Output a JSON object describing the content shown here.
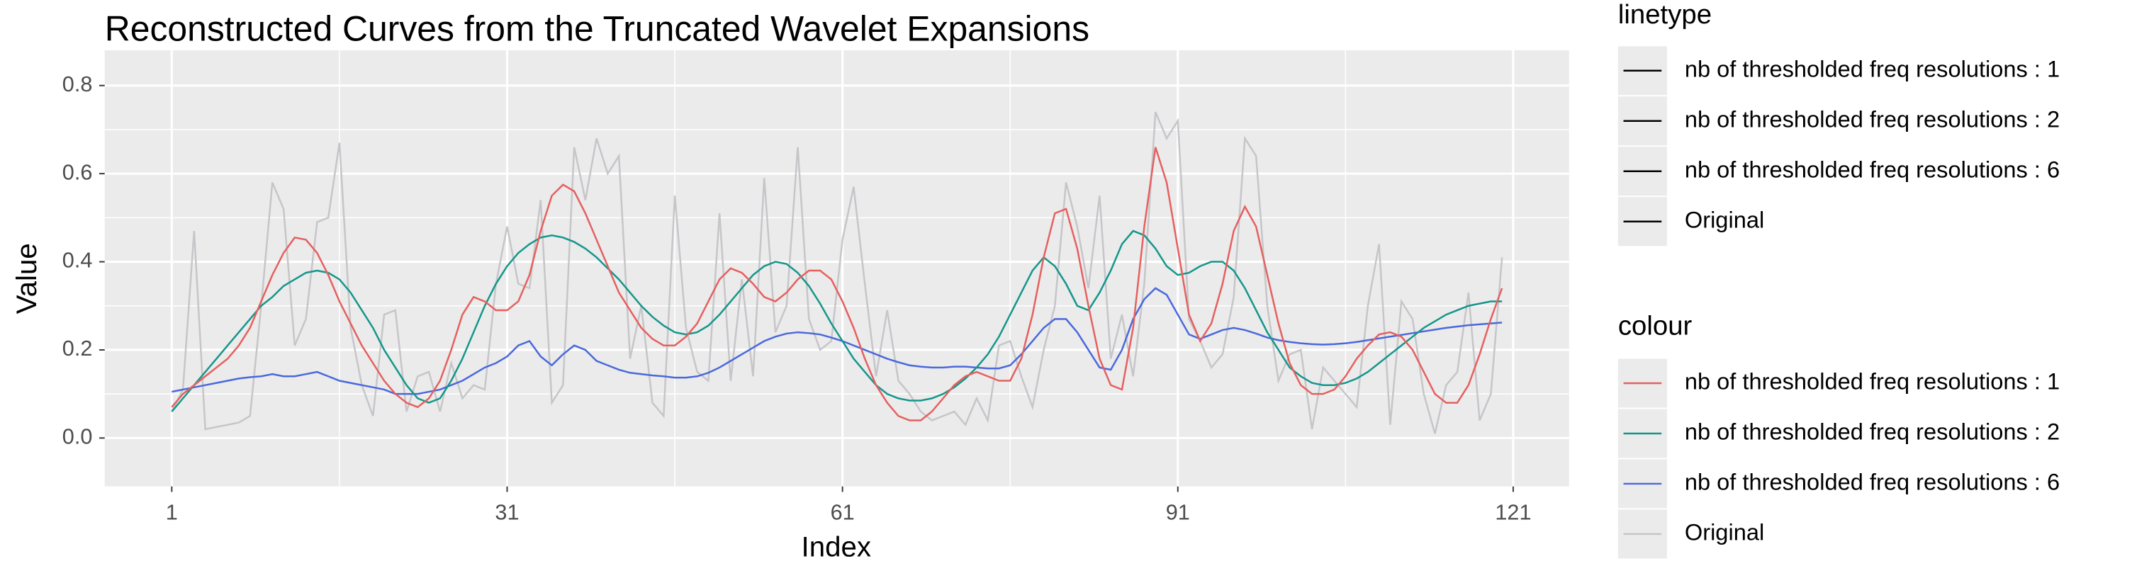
{
  "chart_data": {
    "type": "line",
    "title": "Reconstructed Curves from the Truncated Wavelet Expansions",
    "x_label": "Index",
    "y_label": "Value",
    "xlim": [
      -5,
      126
    ],
    "ylim": [
      -0.11,
      0.88
    ],
    "xticks": [
      1,
      31,
      61,
      91,
      121
    ],
    "yticks": [
      {
        "value": 0,
        "label": "0.0"
      },
      0.2,
      0.4,
      0.6,
      0.8
    ],
    "grid": true,
    "x": [
      1,
      2,
      3,
      4,
      5,
      6,
      7,
      8,
      9,
      10,
      11,
      12,
      13,
      14,
      15,
      16,
      17,
      18,
      19,
      20,
      21,
      22,
      23,
      24,
      25,
      26,
      27,
      28,
      29,
      30,
      31,
      32,
      33,
      34,
      35,
      36,
      37,
      38,
      39,
      40,
      41,
      42,
      43,
      44,
      45,
      46,
      47,
      48,
      49,
      50,
      51,
      52,
      53,
      54,
      55,
      56,
      57,
      58,
      59,
      60,
      61,
      62,
      63,
      64,
      65,
      66,
      67,
      68,
      69,
      70,
      71,
      72,
      73,
      74,
      75,
      76,
      77,
      78,
      79,
      80,
      81,
      82,
      83,
      84,
      85,
      86,
      87,
      88,
      89,
      90,
      91,
      92,
      93,
      94,
      95,
      96,
      97,
      98,
      99,
      100,
      101,
      102,
      103,
      104,
      105,
      106,
      107,
      108,
      109,
      110,
      111,
      112,
      113,
      114,
      115,
      116,
      117,
      118,
      119,
      120
    ],
    "linetype_legend": {
      "title": "linetype",
      "labels": [
        "nb of thresholded freq resolutions : 1",
        "nb of thresholded freq resolutions : 2",
        "nb of thresholded freq resolutions : 6",
        "Original"
      ]
    },
    "colour_legend_title": "colour",
    "series": [
      {
        "name": "nb of thresholded freq resolutions : 1",
        "color": "#e5605f",
        "values": [
          0.07,
          0.1,
          0.12,
          0.14,
          0.16,
          0.18,
          0.21,
          0.25,
          0.31,
          0.37,
          0.42,
          0.455,
          0.45,
          0.42,
          0.37,
          0.31,
          0.26,
          0.21,
          0.17,
          0.13,
          0.1,
          0.08,
          0.07,
          0.09,
          0.13,
          0.2,
          0.28,
          0.32,
          0.31,
          0.29,
          0.29,
          0.31,
          0.37,
          0.47,
          0.55,
          0.575,
          0.56,
          0.51,
          0.45,
          0.39,
          0.33,
          0.29,
          0.25,
          0.225,
          0.21,
          0.21,
          0.23,
          0.26,
          0.31,
          0.36,
          0.385,
          0.375,
          0.35,
          0.32,
          0.31,
          0.33,
          0.36,
          0.38,
          0.38,
          0.36,
          0.31,
          0.25,
          0.18,
          0.12,
          0.08,
          0.05,
          0.04,
          0.04,
          0.06,
          0.09,
          0.12,
          0.14,
          0.15,
          0.14,
          0.13,
          0.13,
          0.18,
          0.28,
          0.41,
          0.51,
          0.52,
          0.43,
          0.3,
          0.18,
          0.12,
          0.11,
          0.25,
          0.48,
          0.66,
          0.58,
          0.43,
          0.28,
          0.22,
          0.26,
          0.35,
          0.47,
          0.525,
          0.48,
          0.37,
          0.26,
          0.17,
          0.12,
          0.1,
          0.1,
          0.11,
          0.14,
          0.18,
          0.21,
          0.235,
          0.24,
          0.23,
          0.2,
          0.15,
          0.1,
          0.08,
          0.08,
          0.12,
          0.19,
          0.27,
          0.34
        ]
      },
      {
        "name": "nb of thresholded freq resolutions : 2",
        "color": "#15968a",
        "values": [
          0.06,
          0.09,
          0.12,
          0.15,
          0.18,
          0.21,
          0.24,
          0.27,
          0.3,
          0.32,
          0.345,
          0.36,
          0.375,
          0.38,
          0.375,
          0.36,
          0.33,
          0.29,
          0.25,
          0.2,
          0.16,
          0.12,
          0.09,
          0.08,
          0.09,
          0.13,
          0.18,
          0.24,
          0.3,
          0.35,
          0.39,
          0.42,
          0.44,
          0.455,
          0.46,
          0.455,
          0.445,
          0.43,
          0.41,
          0.385,
          0.36,
          0.33,
          0.3,
          0.275,
          0.255,
          0.24,
          0.235,
          0.24,
          0.255,
          0.28,
          0.31,
          0.34,
          0.37,
          0.39,
          0.4,
          0.395,
          0.375,
          0.345,
          0.305,
          0.26,
          0.22,
          0.18,
          0.15,
          0.12,
          0.1,
          0.09,
          0.085,
          0.085,
          0.09,
          0.1,
          0.115,
          0.135,
          0.16,
          0.19,
          0.23,
          0.28,
          0.33,
          0.38,
          0.41,
          0.39,
          0.35,
          0.3,
          0.29,
          0.33,
          0.38,
          0.44,
          0.47,
          0.46,
          0.43,
          0.39,
          0.37,
          0.375,
          0.39,
          0.4,
          0.4,
          0.38,
          0.34,
          0.29,
          0.24,
          0.2,
          0.16,
          0.14,
          0.125,
          0.12,
          0.12,
          0.125,
          0.135,
          0.15,
          0.17,
          0.19,
          0.21,
          0.23,
          0.25,
          0.265,
          0.28,
          0.29,
          0.3,
          0.305,
          0.31,
          0.31
        ]
      },
      {
        "name": "nb of thresholded freq resolutions : 6",
        "color": "#4a68dc",
        "values": [
          0.105,
          0.11,
          0.115,
          0.12,
          0.125,
          0.13,
          0.135,
          0.138,
          0.14,
          0.145,
          0.14,
          0.14,
          0.145,
          0.15,
          0.14,
          0.13,
          0.125,
          0.12,
          0.115,
          0.11,
          0.1,
          0.1,
          0.1,
          0.105,
          0.11,
          0.12,
          0.13,
          0.145,
          0.16,
          0.17,
          0.185,
          0.21,
          0.22,
          0.185,
          0.165,
          0.19,
          0.21,
          0.2,
          0.175,
          0.165,
          0.155,
          0.148,
          0.145,
          0.142,
          0.14,
          0.137,
          0.137,
          0.14,
          0.148,
          0.16,
          0.175,
          0.19,
          0.205,
          0.22,
          0.23,
          0.237,
          0.24,
          0.238,
          0.235,
          0.228,
          0.22,
          0.21,
          0.2,
          0.19,
          0.18,
          0.172,
          0.165,
          0.162,
          0.16,
          0.16,
          0.162,
          0.162,
          0.16,
          0.158,
          0.158,
          0.165,
          0.19,
          0.22,
          0.25,
          0.27,
          0.27,
          0.24,
          0.2,
          0.16,
          0.155,
          0.2,
          0.27,
          0.315,
          0.34,
          0.325,
          0.28,
          0.235,
          0.225,
          0.235,
          0.245,
          0.25,
          0.245,
          0.237,
          0.228,
          0.222,
          0.218,
          0.215,
          0.213,
          0.212,
          0.213,
          0.215,
          0.218,
          0.222,
          0.226,
          0.23,
          0.234,
          0.238,
          0.242,
          0.246,
          0.25,
          0.253,
          0.256,
          0.258,
          0.26,
          0.262
        ]
      },
      {
        "name": "Original",
        "color": "#c6c6ca",
        "values": [
          0.06,
          0.11,
          0.47,
          0.02,
          0.025,
          0.03,
          0.035,
          0.05,
          0.3,
          0.58,
          0.52,
          0.21,
          0.27,
          0.49,
          0.5,
          0.67,
          0.25,
          0.12,
          0.05,
          0.28,
          0.29,
          0.06,
          0.14,
          0.15,
          0.06,
          0.17,
          0.09,
          0.12,
          0.11,
          0.35,
          0.48,
          0.35,
          0.34,
          0.54,
          0.08,
          0.12,
          0.66,
          0.54,
          0.68,
          0.6,
          0.64,
          0.18,
          0.3,
          0.08,
          0.05,
          0.55,
          0.25,
          0.15,
          0.13,
          0.51,
          0.13,
          0.36,
          0.14,
          0.59,
          0.24,
          0.3,
          0.66,
          0.27,
          0.2,
          0.22,
          0.45,
          0.57,
          0.35,
          0.14,
          0.29,
          0.13,
          0.1,
          0.06,
          0.04,
          0.05,
          0.06,
          0.03,
          0.09,
          0.04,
          0.21,
          0.22,
          0.14,
          0.07,
          0.2,
          0.3,
          0.58,
          0.48,
          0.34,
          0.55,
          0.18,
          0.28,
          0.14,
          0.35,
          0.74,
          0.68,
          0.72,
          0.27,
          0.22,
          0.16,
          0.19,
          0.32,
          0.68,
          0.64,
          0.3,
          0.13,
          0.19,
          0.2,
          0.02,
          0.16,
          0.13,
          0.1,
          0.07,
          0.3,
          0.44,
          0.03,
          0.31,
          0.27,
          0.1,
          0.01,
          0.12,
          0.15,
          0.33,
          0.04,
          0.1,
          0.41
        ]
      }
    ]
  }
}
